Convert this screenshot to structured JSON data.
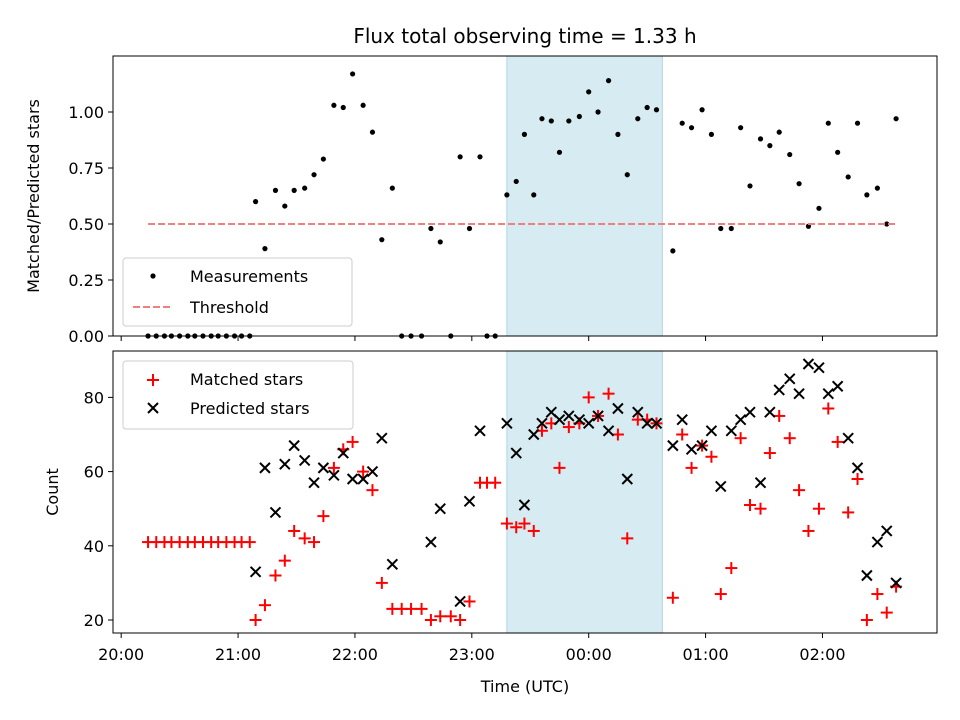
{
  "chart_data": {
    "title": "Flux total observing time = 1.33 h",
    "xlabel": "Time (UTC)",
    "x_unit": "hours since 20:00 UTC",
    "xlim": [
      19.93,
      26.98
    ],
    "xticks": [
      {
        "value": 20,
        "label": "20:00"
      },
      {
        "value": 21,
        "label": "21:00"
      },
      {
        "value": 22,
        "label": "22:00"
      },
      {
        "value": 23,
        "label": "23:00"
      },
      {
        "value": 24,
        "label": "00:00"
      },
      {
        "value": 25,
        "label": "01:00"
      },
      {
        "value": 26,
        "label": "02:00"
      }
    ],
    "shaded_span": {
      "x0": 23.3,
      "x1": 24.63,
      "color": "#add8e6"
    },
    "top": {
      "type": "scatter",
      "ylabel": "Matched/Predicted stars",
      "ylim": [
        0,
        1.25
      ],
      "yticks": [
        {
          "value": 0,
          "label": "0.00"
        },
        {
          "value": 0.25,
          "label": "0.25"
        },
        {
          "value": 0.5,
          "label": "0.50"
        },
        {
          "value": 0.75,
          "label": "0.75"
        },
        {
          "value": 1.0,
          "label": "1.00"
        }
      ],
      "legend_position": "lower-left",
      "series": [
        {
          "name": "Measurements",
          "color": "#000000",
          "marker": "dot",
          "points": [
            [
              20.23,
              0
            ],
            [
              20.3,
              0
            ],
            [
              20.37,
              0
            ],
            [
              20.43,
              0
            ],
            [
              20.5,
              0
            ],
            [
              20.57,
              0
            ],
            [
              20.63,
              0
            ],
            [
              20.7,
              0
            ],
            [
              20.77,
              0
            ],
            [
              20.83,
              0
            ],
            [
              20.9,
              0
            ],
            [
              20.97,
              0
            ],
            [
              21.03,
              0
            ],
            [
              21.1,
              0
            ],
            [
              21.15,
              0.6
            ],
            [
              21.23,
              0.39
            ],
            [
              21.32,
              0.65
            ],
            [
              21.4,
              0.58
            ],
            [
              21.48,
              0.65
            ],
            [
              21.57,
              0.66
            ],
            [
              21.65,
              0.72
            ],
            [
              21.73,
              0.79
            ],
            [
              21.82,
              1.03
            ],
            [
              21.9,
              1.02
            ],
            [
              21.98,
              1.17
            ],
            [
              22.07,
              1.03
            ],
            [
              22.15,
              0.91
            ],
            [
              22.23,
              0.43
            ],
            [
              22.32,
              0.66
            ],
            [
              22.4,
              0
            ],
            [
              22.48,
              0
            ],
            [
              22.57,
              0
            ],
            [
              22.65,
              0.48
            ],
            [
              22.73,
              0.42
            ],
            [
              22.82,
              0
            ],
            [
              22.9,
              0.8
            ],
            [
              22.98,
              0.48
            ],
            [
              23.07,
              0.8
            ],
            [
              23.13,
              0
            ],
            [
              23.2,
              0
            ],
            [
              23.3,
              0.63
            ],
            [
              23.38,
              0.69
            ],
            [
              23.45,
              0.9
            ],
            [
              23.53,
              0.63
            ],
            [
              23.6,
              0.97
            ],
            [
              23.68,
              0.96
            ],
            [
              23.75,
              0.82
            ],
            [
              23.83,
              0.96
            ],
            [
              23.92,
              0.98
            ],
            [
              24.0,
              1.09
            ],
            [
              24.08,
              1.0
            ],
            [
              24.17,
              1.14
            ],
            [
              24.25,
              0.9
            ],
            [
              24.33,
              0.72
            ],
            [
              24.42,
              0.97
            ],
            [
              24.5,
              1.02
            ],
            [
              24.58,
              1.01
            ],
            [
              24.72,
              0.38
            ],
            [
              24.8,
              0.95
            ],
            [
              24.88,
              0.93
            ],
            [
              24.97,
              1.01
            ],
            [
              25.05,
              0.9
            ],
            [
              25.13,
              0.48
            ],
            [
              25.22,
              0.48
            ],
            [
              25.3,
              0.93
            ],
            [
              25.38,
              0.67
            ],
            [
              25.47,
              0.88
            ],
            [
              25.55,
              0.85
            ],
            [
              25.63,
              0.91
            ],
            [
              25.72,
              0.81
            ],
            [
              25.8,
              0.68
            ],
            [
              25.88,
              0.49
            ],
            [
              25.97,
              0.57
            ],
            [
              26.05,
              0.95
            ],
            [
              26.13,
              0.82
            ],
            [
              26.22,
              0.71
            ],
            [
              26.3,
              0.95
            ],
            [
              26.38,
              0.63
            ],
            [
              26.47,
              0.66
            ],
            [
              26.55,
              0.5
            ],
            [
              26.63,
              0.97
            ]
          ]
        },
        {
          "name": "Threshold",
          "color": "#f08080",
          "style": "dashed",
          "x": [
            20.23,
            26.63
          ],
          "y": [
            0.5,
            0.5
          ]
        }
      ]
    },
    "bottom": {
      "type": "scatter",
      "ylabel": "Count",
      "ylim": [
        16.5,
        92.5
      ],
      "yticks": [
        {
          "value": 20,
          "label": "20"
        },
        {
          "value": 40,
          "label": "40"
        },
        {
          "value": 60,
          "label": "60"
        },
        {
          "value": 80,
          "label": "80"
        }
      ],
      "legend_position": "upper-left",
      "series": [
        {
          "name": "Matched stars",
          "color": "#ff0000",
          "marker": "plus",
          "points": [
            [
              20.23,
              41
            ],
            [
              20.3,
              41
            ],
            [
              20.37,
              41
            ],
            [
              20.43,
              41
            ],
            [
              20.5,
              41
            ],
            [
              20.57,
              41
            ],
            [
              20.63,
              41
            ],
            [
              20.7,
              41
            ],
            [
              20.77,
              41
            ],
            [
              20.83,
              41
            ],
            [
              20.9,
              41
            ],
            [
              20.97,
              41
            ],
            [
              21.03,
              41
            ],
            [
              21.1,
              41
            ],
            [
              21.15,
              20
            ],
            [
              21.23,
              24
            ],
            [
              21.32,
              32
            ],
            [
              21.4,
              36
            ],
            [
              21.48,
              44
            ],
            [
              21.57,
              42
            ],
            [
              21.65,
              41
            ],
            [
              21.73,
              48
            ],
            [
              21.82,
              61
            ],
            [
              21.9,
              66
            ],
            [
              21.98,
              68
            ],
            [
              22.07,
              60
            ],
            [
              22.15,
              55
            ],
            [
              22.23,
              30
            ],
            [
              22.32,
              23
            ],
            [
              22.4,
              23
            ],
            [
              22.48,
              23
            ],
            [
              22.57,
              23
            ],
            [
              22.65,
              20
            ],
            [
              22.73,
              21
            ],
            [
              22.82,
              21
            ],
            [
              22.9,
              20
            ],
            [
              22.98,
              25
            ],
            [
              23.07,
              57
            ],
            [
              23.13,
              57
            ],
            [
              23.2,
              57
            ],
            [
              23.3,
              46
            ],
            [
              23.38,
              45
            ],
            [
              23.45,
              46
            ],
            [
              23.53,
              44
            ],
            [
              23.6,
              71
            ],
            [
              23.68,
              73
            ],
            [
              23.75,
              61
            ],
            [
              23.83,
              72
            ],
            [
              23.92,
              73
            ],
            [
              24.0,
              80
            ],
            [
              24.08,
              75
            ],
            [
              24.17,
              81
            ],
            [
              24.25,
              70
            ],
            [
              24.33,
              42
            ],
            [
              24.42,
              74
            ],
            [
              24.5,
              74
            ],
            [
              24.58,
              73
            ],
            [
              24.72,
              26
            ],
            [
              24.8,
              70
            ],
            [
              24.88,
              61
            ],
            [
              24.97,
              67
            ],
            [
              25.05,
              64
            ],
            [
              25.13,
              27
            ],
            [
              25.22,
              34
            ],
            [
              25.3,
              69
            ],
            [
              25.38,
              51
            ],
            [
              25.47,
              50
            ],
            [
              25.55,
              65
            ],
            [
              25.63,
              75
            ],
            [
              25.72,
              69
            ],
            [
              25.8,
              55
            ],
            [
              25.88,
              44
            ],
            [
              25.97,
              50
            ],
            [
              26.05,
              77
            ],
            [
              26.13,
              68
            ],
            [
              26.22,
              49
            ],
            [
              26.3,
              58
            ],
            [
              26.38,
              20
            ],
            [
              26.47,
              27
            ],
            [
              26.55,
              22
            ],
            [
              26.63,
              29
            ]
          ]
        },
        {
          "name": "Predicted stars",
          "color": "#000000",
          "marker": "x",
          "points": [
            [
              21.15,
              33
            ],
            [
              21.23,
              61
            ],
            [
              21.32,
              49
            ],
            [
              21.4,
              62
            ],
            [
              21.48,
              67
            ],
            [
              21.57,
              63
            ],
            [
              21.65,
              57
            ],
            [
              21.73,
              61
            ],
            [
              21.82,
              59
            ],
            [
              21.9,
              65
            ],
            [
              21.98,
              58
            ],
            [
              22.07,
              58
            ],
            [
              22.15,
              60
            ],
            [
              22.23,
              69
            ],
            [
              22.32,
              35
            ],
            [
              22.65,
              41
            ],
            [
              22.73,
              50
            ],
            [
              22.9,
              25
            ],
            [
              22.98,
              52
            ],
            [
              23.07,
              71
            ],
            [
              23.3,
              73
            ],
            [
              23.38,
              65
            ],
            [
              23.45,
              51
            ],
            [
              23.53,
              70
            ],
            [
              23.6,
              73
            ],
            [
              23.68,
              76
            ],
            [
              23.75,
              74
            ],
            [
              23.83,
              75
            ],
            [
              23.92,
              74
            ],
            [
              24.0,
              73
            ],
            [
              24.08,
              75
            ],
            [
              24.17,
              71
            ],
            [
              24.25,
              77
            ],
            [
              24.33,
              58
            ],
            [
              24.42,
              76
            ],
            [
              24.5,
              73
            ],
            [
              24.58,
              73
            ],
            [
              24.72,
              67
            ],
            [
              24.8,
              74
            ],
            [
              24.88,
              66
            ],
            [
              24.97,
              67
            ],
            [
              25.05,
              71
            ],
            [
              25.13,
              56
            ],
            [
              25.22,
              71
            ],
            [
              25.3,
              74
            ],
            [
              25.38,
              76
            ],
            [
              25.47,
              57
            ],
            [
              25.55,
              76
            ],
            [
              25.63,
              82
            ],
            [
              25.72,
              85
            ],
            [
              25.8,
              81
            ],
            [
              25.88,
              89
            ],
            [
              25.97,
              88
            ],
            [
              26.05,
              81
            ],
            [
              26.13,
              83
            ],
            [
              26.22,
              69
            ],
            [
              26.3,
              61
            ],
            [
              26.38,
              32
            ],
            [
              26.47,
              41
            ],
            [
              26.55,
              44
            ],
            [
              26.63,
              30
            ]
          ]
        }
      ]
    }
  }
}
